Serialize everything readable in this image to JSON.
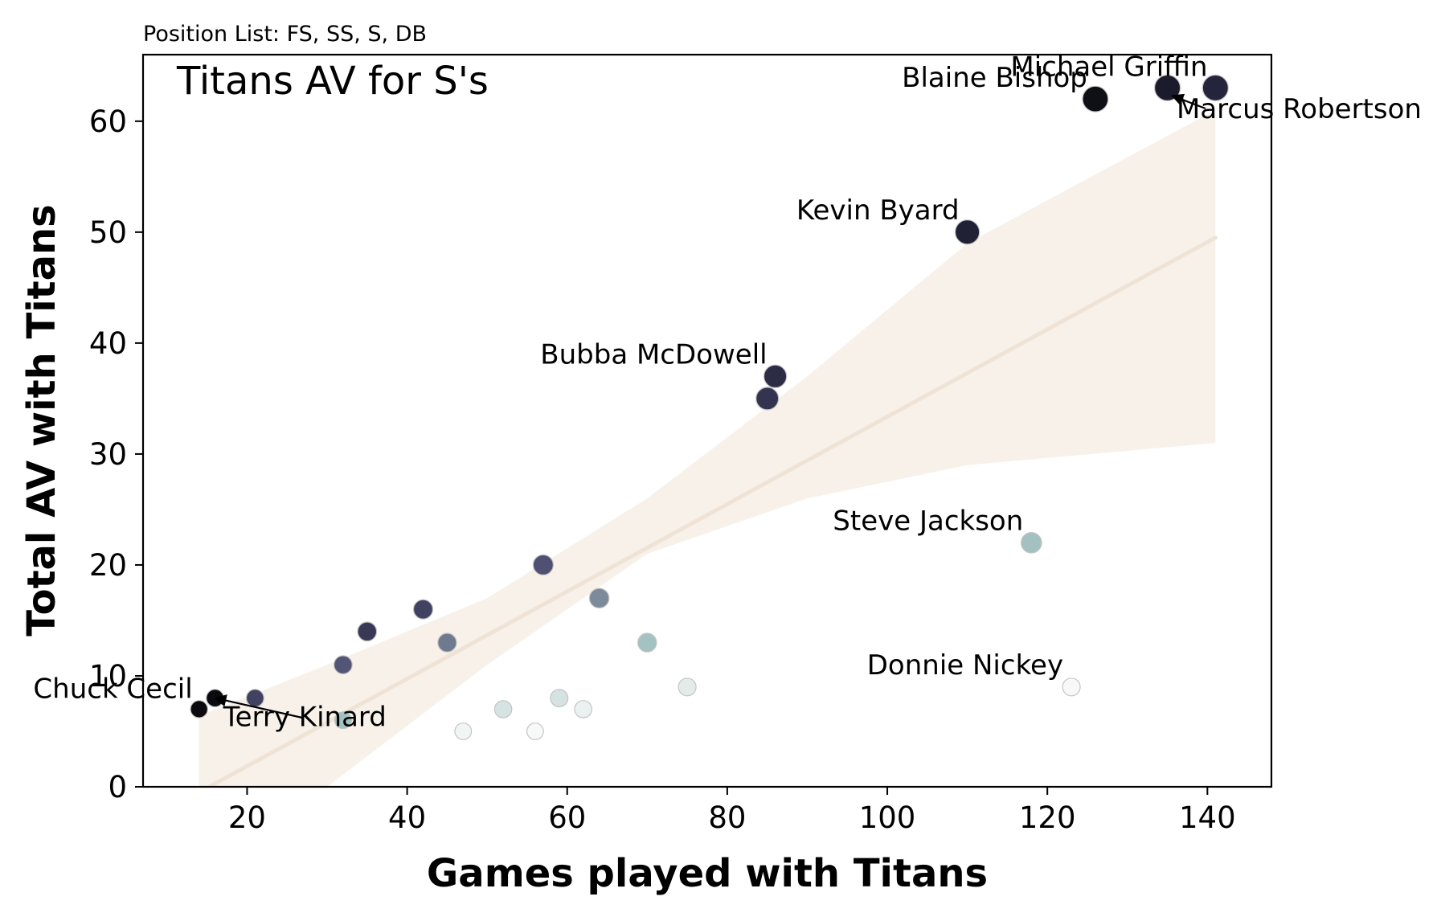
{
  "chart_data": {
    "type": "scatter",
    "subtitle": "Position List: FS, SS, S, DB",
    "title": "Titans AV for S's",
    "xlabel": "Games played with Titans",
    "ylabel": "Total AV with Titans",
    "xlim": [
      7,
      148
    ],
    "ylim": [
      0,
      66
    ],
    "xticks": [
      20,
      40,
      60,
      80,
      100,
      120,
      140
    ],
    "yticks": [
      0,
      10,
      20,
      30,
      40,
      50,
      60
    ],
    "grid": false,
    "legend": "none",
    "colors": {
      "high_av_per_game": "#0b0b0f",
      "mid_av_per_game": "#4a4a6e",
      "low_av_per_game": "#9fbfbe",
      "lowest_av_per_game": "#f7f9f8",
      "trend_line": "#efe3d5",
      "confidence_band": "#f7f1ea"
    },
    "points": [
      {
        "x": 14,
        "y": 7,
        "label": "Chuck Cecil"
      },
      {
        "x": 16,
        "y": 8,
        "label": "Terry Kinard"
      },
      {
        "x": 21,
        "y": 8
      },
      {
        "x": 32,
        "y": 11
      },
      {
        "x": 32,
        "y": 6
      },
      {
        "x": 35,
        "y": 14
      },
      {
        "x": 42,
        "y": 16
      },
      {
        "x": 45,
        "y": 13
      },
      {
        "x": 47,
        "y": 5
      },
      {
        "x": 52,
        "y": 7
      },
      {
        "x": 56,
        "y": 5
      },
      {
        "x": 57,
        "y": 20
      },
      {
        "x": 59,
        "y": 8
      },
      {
        "x": 62,
        "y": 7
      },
      {
        "x": 64,
        "y": 17
      },
      {
        "x": 70,
        "y": 13
      },
      {
        "x": 75,
        "y": 9
      },
      {
        "x": 85,
        "y": 35
      },
      {
        "x": 86,
        "y": 37,
        "label": "Bubba McDowell"
      },
      {
        "x": 110,
        "y": 50,
        "label": "Kevin Byard"
      },
      {
        "x": 118,
        "y": 22,
        "label": "Steve Jackson"
      },
      {
        "x": 123,
        "y": 9,
        "label": "Donnie Nickey"
      },
      {
        "x": 126,
        "y": 62,
        "label": "Blaine Bishop"
      },
      {
        "x": 135,
        "y": 63,
        "label": "Michael Griffin"
      },
      {
        "x": 141,
        "y": 63,
        "label": "Marcus Robertson"
      }
    ],
    "trend": {
      "x": [
        14,
        141
      ],
      "y": [
        -0.5,
        49.5
      ],
      "band": [
        {
          "x": 14,
          "lo": -7.5,
          "hi": 6.4
        },
        {
          "x": 30,
          "lo": 0,
          "hi": 11
        },
        {
          "x": 50,
          "lo": 11,
          "hi": 17
        },
        {
          "x": 70,
          "lo": 21,
          "hi": 26
        },
        {
          "x": 90,
          "lo": 26,
          "hi": 37
        },
        {
          "x": 110,
          "lo": 29,
          "hi": 49
        },
        {
          "x": 141,
          "lo": 31,
          "hi": 61
        }
      ]
    }
  }
}
